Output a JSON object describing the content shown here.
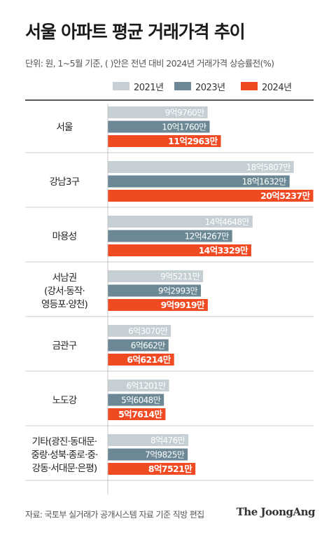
{
  "title": "서울 아파트 평균 거래가격 추이",
  "note": "단위: 원, 1~5월 기준, (  )안은 전년 대비 2024년 거래가격 상승률전(%)",
  "source": "자료: 국토부 실거래가 공개시스템 자료 기준 직방 편집",
  "brand": "The JoongAng",
  "colors": {
    "y2021": "#c5cfd4",
    "y2023": "#6b8894",
    "y2024": "#f04a23",
    "grid": "#222222"
  },
  "chart_data": {
    "type": "bar",
    "orientation": "horizontal",
    "categories": [
      [
        "서울"
      ],
      [
        "강남3구"
      ],
      [
        "마용성"
      ],
      [
        "서남권",
        "(강서·동작·",
        "영등포·양천)"
      ],
      [
        "금관구"
      ],
      [
        "노도강"
      ],
      [
        "기타(광진·동대문·",
        "중랑·성북·종로·중·",
        "강동·서대문·은평)"
      ]
    ],
    "series": [
      {
        "name": "2021년",
        "values": [
          997600000,
          1858070000,
          1446480000,
          952110000,
          630700000,
          612010000,
          804760000
        ],
        "labels": [
          "9억9760만",
          "18억5807만",
          "14억4648만",
          "9억5211만",
          "6억3070만",
          "6억1201만",
          "8억476만"
        ]
      },
      {
        "name": "2023년",
        "values": [
          1017600000,
          1816320000,
          1242670000,
          929930000,
          606620000,
          560480000,
          798250000
        ],
        "labels": [
          "10억1760만",
          "18억1632만",
          "12억4267만",
          "9억2993만",
          "6억662만",
          "5억6048만",
          "7억9825만"
        ]
      },
      {
        "name": "2024년",
        "values": [
          1129630000,
          2052370000,
          1433290000,
          999190000,
          662140000,
          576140000,
          875210000
        ],
        "labels": [
          "11억2963만",
          "20억5237만",
          "14억3329만",
          "9억9919만",
          "6억6214만",
          "5억7614만",
          "8억7521만"
        ]
      }
    ]
  }
}
